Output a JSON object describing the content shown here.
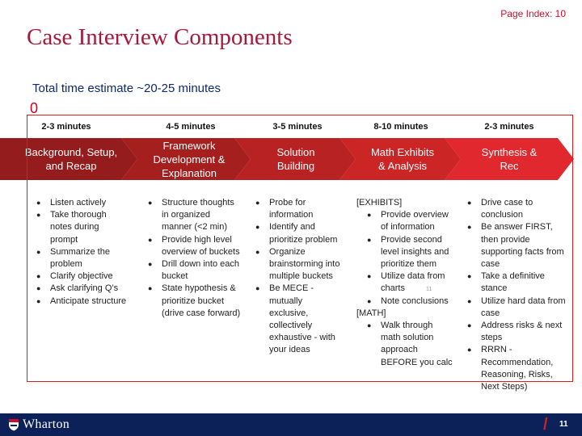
{
  "header": {
    "page_index": "Page Index: 10",
    "title": "Case Interview Components",
    "subtitle": "Total time estimate ~20-25 minutes",
    "marker": "0"
  },
  "colors": {
    "title": "#a5193a",
    "chevron_dark": "#8c1a1a",
    "chevron_light": "#e0282e",
    "box": "#e01b1b",
    "footer": "#0c2158"
  },
  "stages": [
    {
      "duration": "2-3 minutes",
      "label": "Background, Setup,\nand Recap",
      "items": [
        {
          "t": "Listen actively",
          "k": "bullet"
        },
        {
          "t": "Take thorough notes during prompt",
          "k": "bullet"
        },
        {
          "t": "Summarize the problem",
          "k": "bullet"
        },
        {
          "t": "Clarify objective",
          "k": "bullet"
        },
        {
          "t": "Ask clarifying Q’s",
          "k": "bullet"
        },
        {
          "t": "Anticipate structure",
          "k": "bullet"
        }
      ]
    },
    {
      "duration": "4-5 minutes",
      "label": "Framework\nDevelopment &\nExplanation",
      "items": [
        {
          "t": "Structure thoughts in organized manner (<2 min)",
          "k": "bullet"
        },
        {
          "t": "Provide high level overview of buckets",
          "k": "bullet"
        },
        {
          "t": "Drill down into each bucket",
          "k": "bullet"
        },
        {
          "t": "State hypothesis & prioritize bucket (drive case forward)",
          "k": "bullet"
        }
      ]
    },
    {
      "duration": "3-5 minutes",
      "label": "Solution\nBuilding",
      "items": [
        {
          "t": "Probe for information",
          "k": "bullet"
        },
        {
          "t": "Identify and prioritize problem",
          "k": "bullet"
        },
        {
          "t": "Organize brainstorming into multiple buckets",
          "k": "bullet"
        },
        {
          "t": "Be MECE - mutually exclusive, collectively exhaustive - with your ideas",
          "k": "bullet"
        }
      ]
    },
    {
      "duration": "8-10 minutes",
      "label": "Math Exhibits\n& Analysis",
      "items": [
        {
          "t": "[EXHIBITS]",
          "k": "head"
        },
        {
          "t": "Provide overview of information",
          "k": "sub"
        },
        {
          "t": "Provide second level insights and prioritize them",
          "k": "sub"
        },
        {
          "t": "Utilize data from charts",
          "k": "sub"
        },
        {
          "t": "Note conclusions",
          "k": "sub"
        },
        {
          "t": "[MATH]",
          "k": "head"
        },
        {
          "t": "Walk through math solution approach BEFORE you calc",
          "k": "sub"
        }
      ]
    },
    {
      "duration": "2-3 minutes",
      "label": "Synthesis &\nRec",
      "items": [
        {
          "t": "Drive case to conclusion",
          "k": "bullet"
        },
        {
          "t": "Be answer FIRST, then provide supporting facts from case",
          "k": "bullet"
        },
        {
          "t": "Take a definitive stance",
          "k": "bullet"
        },
        {
          "t": "Utilize hard data from case",
          "k": "bullet"
        },
        {
          "t": "Address risks & next steps",
          "k": "bullet"
        },
        {
          "t": "RRRN -Recommendation, Reasoning, Risks, Next Steps)",
          "k": "bullet"
        }
      ]
    }
  ],
  "inline_page_mark": "11",
  "footer": {
    "logo_text": "Wharton",
    "logo_icon": "penn-shield-icon",
    "slide_number": "11"
  }
}
